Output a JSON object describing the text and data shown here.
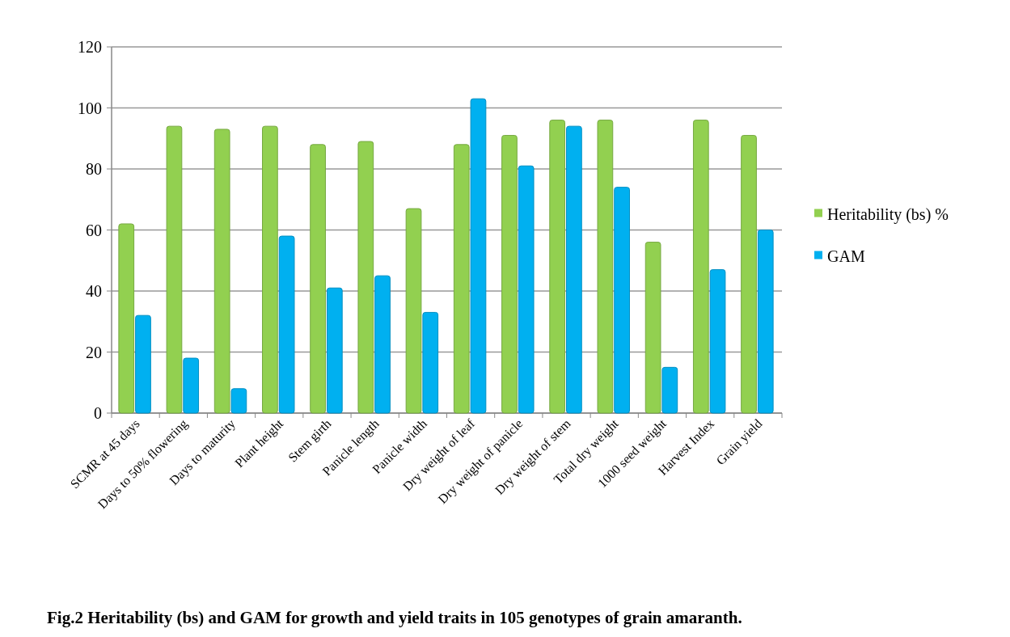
{
  "chart_data": {
    "type": "bar",
    "title": "Fig.2  Heritability (bs) and GAM for  growth and yield traits in 105 genotypes of grain amaranth.",
    "categories": [
      "SCMR at 45 days",
      "Days to 50% flowering",
      "Days to maturity",
      "Plant height",
      "Stem girth",
      "Panicle length",
      "Panicle width",
      "Dry weight of leaf",
      "Dry weight of panicle",
      "Dry weight of stem",
      "Total dry weight",
      "1000 seed weight",
      "Harvest Index",
      "Grain yield"
    ],
    "series": [
      {
        "name": "Heritability  (bs) %",
        "color": "#92d050",
        "values": [
          62,
          94,
          93,
          94,
          88,
          89,
          67,
          88,
          91,
          96,
          96,
          56,
          96,
          91
        ]
      },
      {
        "name": "GAM",
        "color": "#00b0f0",
        "values": [
          32,
          18,
          8,
          58,
          41,
          45,
          33,
          103,
          81,
          94,
          74,
          15,
          47,
          60
        ]
      }
    ],
    "ylim": [
      0,
      120
    ],
    "yticks": [
      0,
      20,
      40,
      60,
      80,
      100,
      120
    ],
    "grid": "y",
    "legend": "right"
  }
}
